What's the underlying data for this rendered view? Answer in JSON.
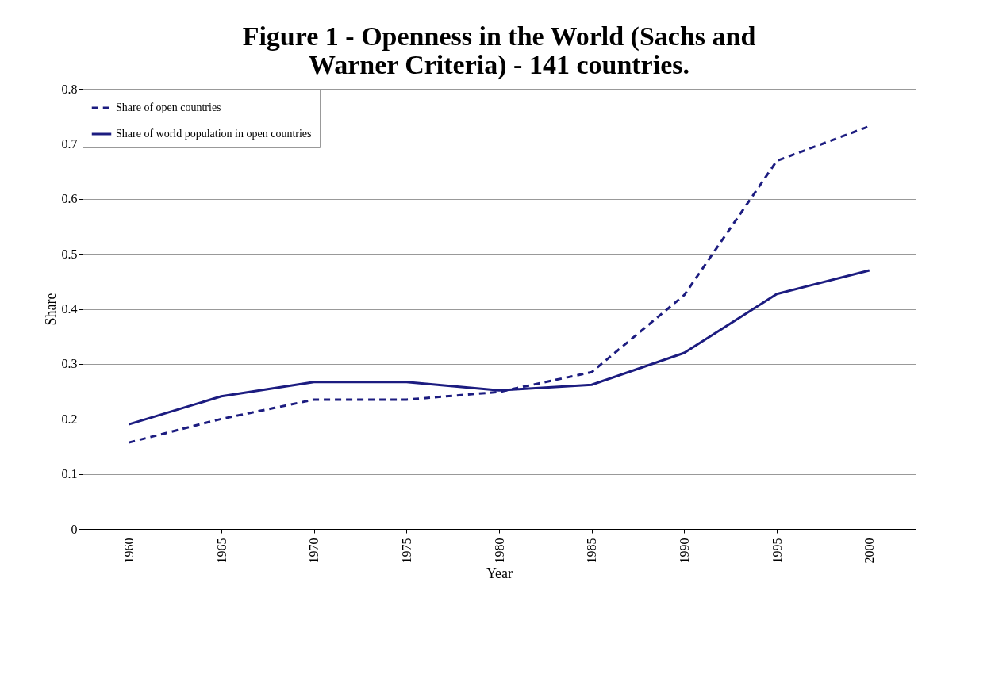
{
  "chart_data": {
    "type": "line",
    "title": "Figure 1 - Openness in the World (Sachs and Warner Criteria) - 141 countries.",
    "xlabel": "Year",
    "ylabel": "Share",
    "categories": [
      "1960",
      "1965",
      "1970",
      "1975",
      "1980",
      "1985",
      "1990",
      "1995",
      "2000"
    ],
    "series": [
      {
        "name": "Share of open countries",
        "color": "#1c1c80",
        "line_style": "dashed",
        "values": [
          0.157,
          0.2,
          0.235,
          0.235,
          0.249,
          0.285,
          0.425,
          0.669,
          0.732
        ]
      },
      {
        "name": "Share of world population in open countries",
        "color": "#1c1c80",
        "line_style": "solid",
        "values": [
          0.19,
          0.241,
          0.267,
          0.267,
          0.252,
          0.262,
          0.32,
          0.427,
          0.47
        ]
      }
    ],
    "ylim": [
      0,
      0.8
    ],
    "yticks": [
      0,
      0.1,
      0.2,
      0.3,
      0.4,
      0.5,
      0.6,
      0.7,
      0.8
    ],
    "grid": "y",
    "legend": "top left",
    "marker": "none"
  }
}
